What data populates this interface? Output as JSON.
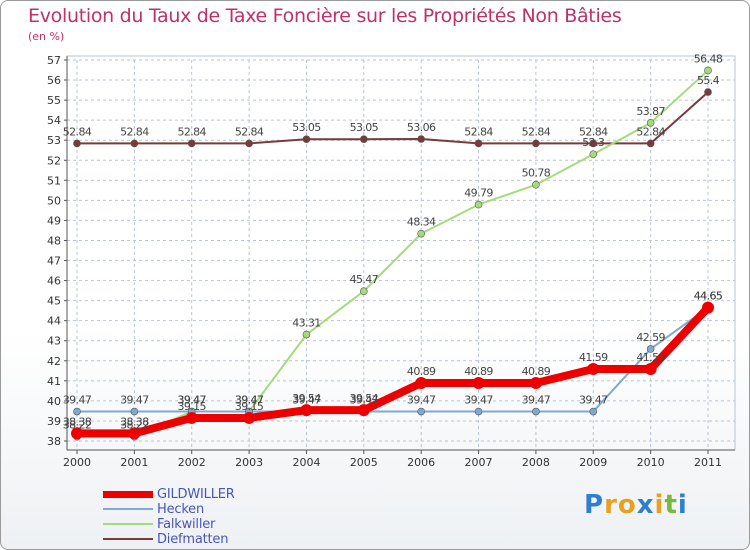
{
  "chart_data": {
    "type": "line",
    "title": "Evolution du Taux de Taxe Foncière sur les Propriétés Non Bâties",
    "ylabel": "(en %)",
    "xlabel": "",
    "ylim": [
      38,
      57
    ],
    "yticks": [
      "38",
      "39",
      "40",
      "41",
      "42",
      "43",
      "44",
      "45",
      "46",
      "47",
      "48",
      "49",
      "50",
      "51",
      "52",
      "53",
      "54",
      "55",
      "56",
      "57"
    ],
    "categories": [
      "2000",
      "2001",
      "2002",
      "2003",
      "2004",
      "2005",
      "2006",
      "2007",
      "2008",
      "2009",
      "2010",
      "2011"
    ],
    "series": [
      {
        "name": "GILDWILLER",
        "color": "#ee0000",
        "values": [
          38.38,
          38.38,
          39.15,
          39.15,
          39.54,
          39.54,
          40.89,
          40.89,
          40.89,
          41.59,
          41.59,
          44.65
        ],
        "labels": [
          "38.38",
          "38.38",
          "39.15",
          "39.15",
          "39.54",
          "39.54",
          "40.89",
          "40.89",
          "40.89",
          "41.59",
          "41.59",
          "44.65"
        ]
      },
      {
        "name": "Hecken",
        "color": "#7fa9cf",
        "values": [
          39.47,
          39.47,
          39.47,
          39.47,
          39.47,
          39.47,
          39.47,
          39.47,
          39.47,
          39.47,
          42.59,
          44.65
        ],
        "labels": [
          "39.47",
          "39.47",
          "39.47",
          "39.47",
          "39.47",
          "39.47",
          "39.47",
          "39.47",
          "39.47",
          "39.47",
          "42.59",
          "44.65"
        ]
      },
      {
        "name": "Falkwiller",
        "color": "#a4dc7c",
        "values": [
          38.22,
          38.22,
          39.47,
          39.47,
          43.31,
          45.47,
          48.34,
          49.79,
          50.78,
          52.3,
          53.87,
          56.48
        ],
        "labels": [
          "38.22",
          "38.22",
          "39.47",
          "39.47",
          "43.31",
          "45.47",
          "48.34",
          "49.79",
          "50.78",
          "52.3",
          "53.87",
          "56.48"
        ]
      },
      {
        "name": "Diefmatten",
        "color": "#7a3a3a",
        "values": [
          52.84,
          52.84,
          52.84,
          52.84,
          53.05,
          53.05,
          53.06,
          52.84,
          52.84,
          52.84,
          52.84,
          55.4
        ],
        "labels": [
          "52.84",
          "52.84",
          "52.84",
          "52.84",
          "53.05",
          "53.05",
          "53.06",
          "52.84",
          "52.84",
          "52.84",
          "52.84",
          "55.4"
        ]
      }
    ]
  },
  "legend": [
    "GILDWILLER",
    "Hecken",
    "Falkwiller",
    "Diefmatten"
  ],
  "logo": {
    "text": "Proxiti",
    "letters": [
      "P",
      "r",
      "o",
      "x",
      "i",
      "t",
      "i"
    ],
    "colors": [
      "#2f7fd0",
      "#e8a020",
      "#e8a020",
      "#2f7fd0",
      "#e8a020",
      "#79b83a",
      "#2f7fd0"
    ]
  }
}
